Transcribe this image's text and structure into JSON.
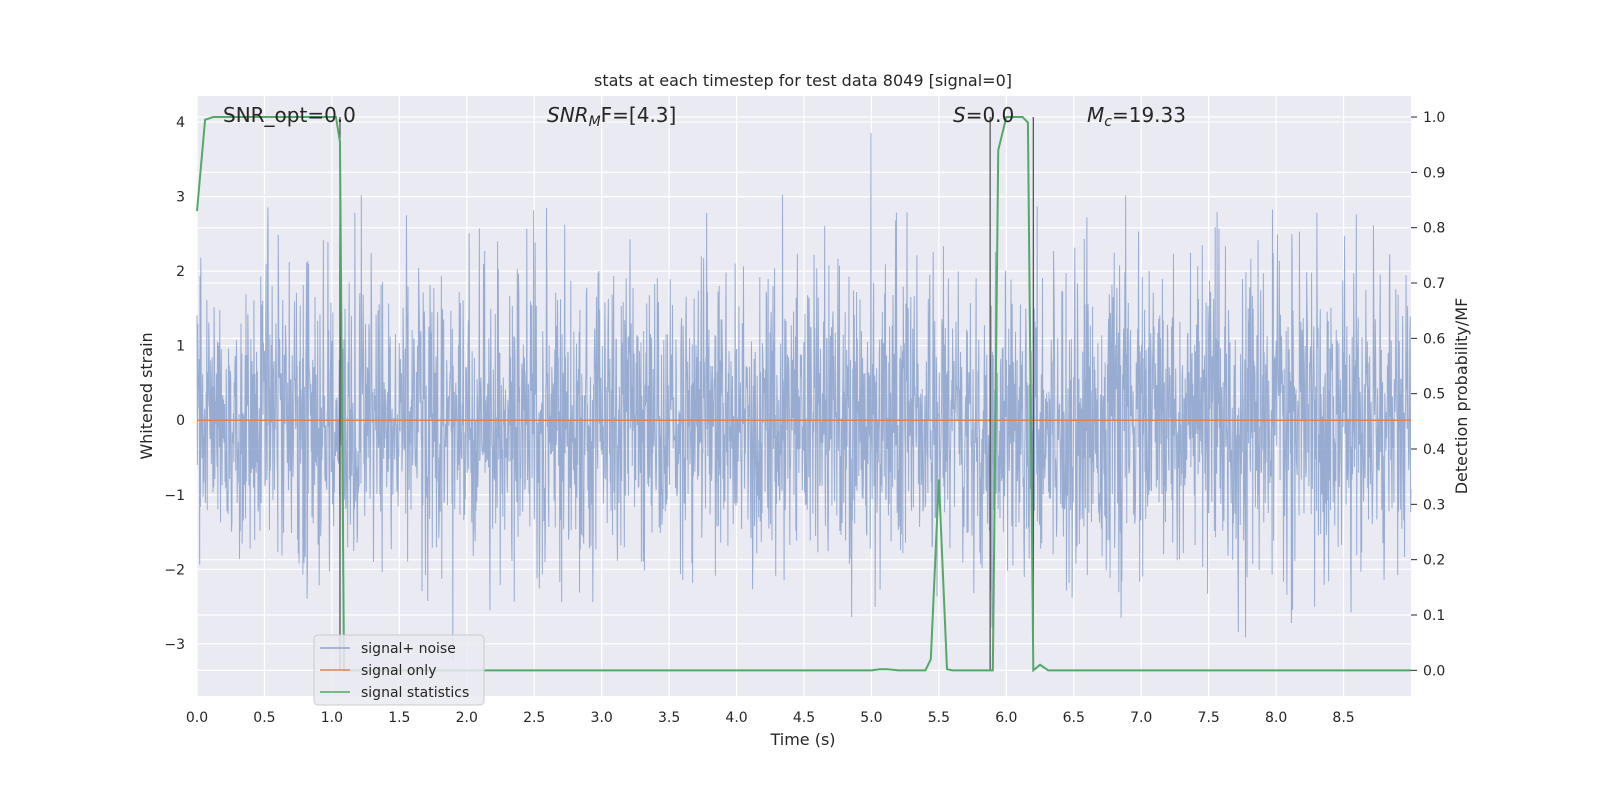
{
  "chart_data": {
    "type": "line",
    "title": "stats at each timestep for test data 8049 [signal=0]",
    "xlabel": "Time (s)",
    "ylabel": "Whitened strain",
    "y2label": "Detection probability/MF",
    "xlim": [
      0,
      9.0
    ],
    "ylim": [
      -3.7,
      4.35
    ],
    "y2lim": [
      -0.0464,
      1.038
    ],
    "x_ticks": [
      "0.0",
      "0.5",
      "1.0",
      "1.5",
      "2.0",
      "2.5",
      "3.0",
      "3.5",
      "4.0",
      "4.5",
      "5.0",
      "5.5",
      "6.0",
      "6.5",
      "7.0",
      "7.5",
      "8.0",
      "8.5"
    ],
    "y_ticks": [
      "4",
      "3",
      "2",
      "1",
      "0",
      "−1",
      "−2",
      "−3"
    ],
    "y2_ticks": [
      "1.0",
      "0.9",
      "0.8",
      "0.7",
      "0.6",
      "0.5",
      "0.4",
      "0.3",
      "0.2",
      "0.1",
      "0.0"
    ],
    "grid": true,
    "legend_position": "lower-left",
    "annotations": {
      "snr_opt": "SNR_opt=0.0",
      "snr_mf_main": "SNR",
      "snr_mf_sub": "M",
      "snr_mf_tail": "F=[4.3]",
      "s_main": "S",
      "s_tail": "=0.0",
      "mc_main": "M",
      "mc_sub": "c",
      "mc_tail": "=19.33"
    },
    "series": [
      {
        "name": "signal+ noise",
        "color": "#8fa5ce",
        "noise_sigma": 1.0,
        "max_value": 4.0,
        "min_value": -3.3
      },
      {
        "name": "signal only",
        "color": "#dd8452",
        "x": [
          0,
          9.0
        ],
        "y": [
          0,
          0
        ]
      },
      {
        "name": "signal statistics",
        "color": "#55a868",
        "axis": "right",
        "x": [
          0.0,
          0.06,
          0.12,
          0.2,
          0.3,
          0.4,
          0.5,
          0.6,
          0.7,
          0.8,
          0.9,
          1.0,
          1.03,
          1.06,
          1.09,
          1.12,
          1.2,
          1.5,
          2.0,
          2.5,
          3.0,
          3.5,
          4.0,
          4.5,
          5.0,
          5.06,
          5.12,
          5.2,
          5.3,
          5.4,
          5.44,
          5.5,
          5.56,
          5.6,
          5.7,
          5.8,
          5.86,
          5.9,
          5.94,
          6.0,
          6.06,
          6.12,
          6.16,
          6.2,
          6.25,
          6.31,
          6.4,
          7.0,
          8.0,
          9.0
        ],
        "y": [
          0.83,
          0.995,
          1.0,
          1.0,
          1.0,
          1.0,
          1.0,
          1.0,
          1.0,
          1.0,
          1.0,
          1.0,
          1.0,
          0.955,
          0.0,
          0.0,
          0.0,
          0.0,
          0.0,
          0.0,
          0.0,
          0.0,
          0.0,
          0.0,
          0.0,
          0.002,
          0.002,
          0.0,
          0.0,
          0.0,
          0.02,
          0.345,
          0.002,
          0.0,
          0.0,
          0.0,
          0.0,
          0.0,
          0.94,
          1.0,
          1.0,
          1.0,
          0.99,
          0.0,
          0.01,
          0.0,
          0.0,
          0.0,
          0.0,
          0.0
        ]
      }
    ],
    "vertical_markers_x": [
      1.06,
      5.88,
      6.2
    ]
  }
}
